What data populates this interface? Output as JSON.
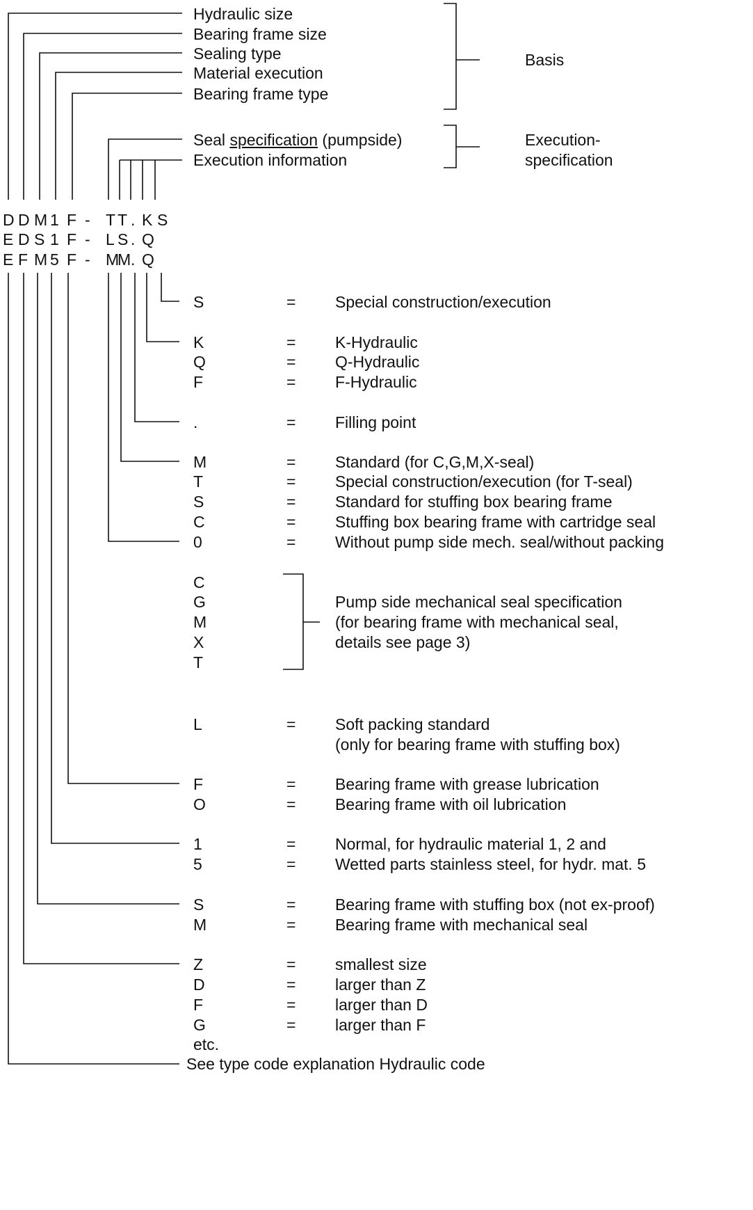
{
  "header_labels": [
    "Hydraulic size",
    "Bearing frame size",
    "Sealing type",
    "Material execution",
    "Bearing frame type"
  ],
  "seal_spec": {
    "prefix": "Seal ",
    "underlined": "specification",
    "suffix": " (pumpside)"
  },
  "execution_info": "Execution information",
  "groups": {
    "basis": "Basis",
    "execution_line1": "Execution-",
    "execution_line2": "specification"
  },
  "codes": [
    [
      "D",
      "D",
      "M",
      "1",
      "F",
      "-",
      "T",
      "T",
      ".",
      "K",
      "S"
    ],
    [
      "E",
      "D",
      "S",
      "1",
      "F",
      "-",
      "L",
      "S",
      ".",
      "Q"
    ],
    [
      "E",
      "F",
      "M",
      "5",
      "F",
      "-",
      "M",
      "M",
      ".",
      "Q"
    ]
  ],
  "equals": "=",
  "defs": [
    {
      "key": "S",
      "value": "Special construction/execution"
    },
    {
      "key": "K",
      "value": "K-Hydraulic"
    },
    {
      "key": "Q",
      "value": "Q-Hydraulic"
    },
    {
      "key": "F",
      "value": "F-Hydraulic"
    },
    {
      "key": ".",
      "value": "Filling point"
    },
    {
      "key": "M",
      "value": "Standard (for C,G,M,X-seal)"
    },
    {
      "key": "T",
      "value": "Special construction/execution (for T-seal)"
    },
    {
      "key": "S",
      "value": "Standard for stuffing box bearing frame"
    },
    {
      "key": "C",
      "value": "Stuffing box bearing frame with cartridge seal"
    },
    {
      "key": "0",
      "value": "Without pump side mech. seal/without packing"
    },
    {
      "key": "L",
      "value": "Soft packing standard"
    },
    {
      "key": "",
      "value": "(only for bearing frame with stuffing box)"
    },
    {
      "key": "F",
      "value": "Bearing frame with grease lubrication"
    },
    {
      "key": "O",
      "value": "Bearing frame with oil lubrication"
    },
    {
      "key": "1",
      "value": "Normal, for hydraulic material 1, 2 and"
    },
    {
      "key": "5",
      "value": "Wetted parts stainless steel, for hydr. mat. 5"
    },
    {
      "key": "S",
      "value": "Bearing frame with stuffing box (not ex-proof)"
    },
    {
      "key": "M",
      "value": "Bearing frame with mechanical seal"
    },
    {
      "key": "Z",
      "value": "smallest size"
    },
    {
      "key": "D",
      "value": "larger than Z"
    },
    {
      "key": "F",
      "value": "larger than D"
    },
    {
      "key": "G",
      "value": "larger than F"
    }
  ],
  "seal_letters": [
    "C",
    "G",
    "M",
    "X",
    "T"
  ],
  "seal_desc": [
    "Pump side mechanical seal specification",
    "(for bearing frame with mechanical seal,",
    "details see page 3)"
  ],
  "etc": "etc.",
  "footer": "See type code explanation Hydraulic code"
}
